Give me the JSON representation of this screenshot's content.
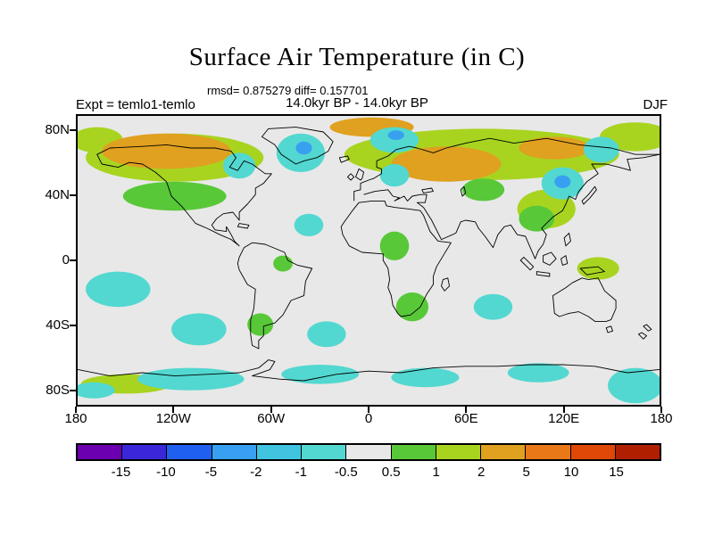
{
  "title": "Surface Air Temperature (in C)",
  "header": {
    "stats": "rmsd= 0.875279 diff= 0.157701",
    "expt": "Expt = temlo1-temlo",
    "period": "14.0kyr BP - 14.0kyr BP",
    "season": "DJF"
  },
  "map": {
    "lat_ticks": [
      "80N",
      "40N",
      "0",
      "40S",
      "80S"
    ],
    "lon_ticks": [
      "180",
      "120W",
      "60W",
      "0",
      "60E",
      "120E",
      "180"
    ]
  },
  "colorbar": {
    "tick_labels": [
      "-15",
      "-10",
      "-5",
      "-2",
      "-1",
      "-0.5",
      "0.5",
      "1",
      "2",
      "5",
      "10",
      "15"
    ],
    "colors": [
      "#6a00b0",
      "#3a28d8",
      "#2060f0",
      "#38a0f0",
      "#40c4e0",
      "#52d8d0",
      "#e8e8e8",
      "#58c838",
      "#a8d420",
      "#e0a020",
      "#e87818",
      "#e04808",
      "#b02000"
    ]
  },
  "chart_data": {
    "type": "heatmap",
    "title": "Surface Air Temperature (in C)",
    "stats": {
      "rmsd": 0.875279,
      "diff": 0.157701
    },
    "experiment": "temlo1-temlo",
    "comparison": "14.0kyr BP - 14.0kyr BP",
    "season": "DJF",
    "units": "C",
    "projection": "equirectangular world map, longitude 180W to 180E centered on 0, latitude 90S to 90N",
    "contour_levels": [
      -15,
      -10,
      -5,
      -2,
      -1,
      -0.5,
      0.5,
      1,
      2,
      5,
      10,
      15
    ],
    "palette": [
      "#6a00b0",
      "#3a28d8",
      "#2060f0",
      "#38a0f0",
      "#40c4e0",
      "#52d8d0",
      "#e8e8e8",
      "#58c838",
      "#a8d420",
      "#e0a020",
      "#e87818",
      "#e04808",
      "#b02000"
    ],
    "lat_ticks": [
      "80N",
      "40N",
      "0",
      "40S",
      "80S"
    ],
    "lon_ticks": [
      "180",
      "120W",
      "60W",
      "0",
      "60E",
      "120E",
      "180"
    ],
    "legend_position": "bottom horizontal colorbar",
    "notable_regions": [
      {
        "value_range": "2 to 5",
        "color": "orange",
        "where": "northern Canada and Alaska; Europe and western Russia; central Siberia; high Arctic strip"
      },
      {
        "value_range": "1 to 2",
        "color": "yellow-green",
        "where": "broad band across high northern latitudes of North America and Eurasia; East Asia; New Guinea; Antarctic coast near 180W"
      },
      {
        "value_range": "0.5 to 1",
        "color": "green",
        "where": "western/central North America; central Africa; southern Africa; central Asia; Southeast Asia; southern South America; Amazon spot"
      },
      {
        "value_range": "-1 to -0.5",
        "color": "turquoise",
        "where": "Greenland and Baffin Bay; Nordic/Barents seas; northern Europe; northeast Asia and Sea of Okhotsk; Hudson Bay; subtropical South Pacific, southeast Pacific, South Atlantic, central Indian Ocean; Southern Ocean band near Antarctica; southwest Pacific near 180E"
      },
      {
        "value_range": "-2 to -1",
        "color": "light blue",
        "where": "small cores inside Greenland, Barents and northeast Asia patches"
      },
      {
        "value_range": "-0.5 to 0.5",
        "color": "light gray",
        "where": "most remaining ocean and land areas"
      }
    ]
  }
}
